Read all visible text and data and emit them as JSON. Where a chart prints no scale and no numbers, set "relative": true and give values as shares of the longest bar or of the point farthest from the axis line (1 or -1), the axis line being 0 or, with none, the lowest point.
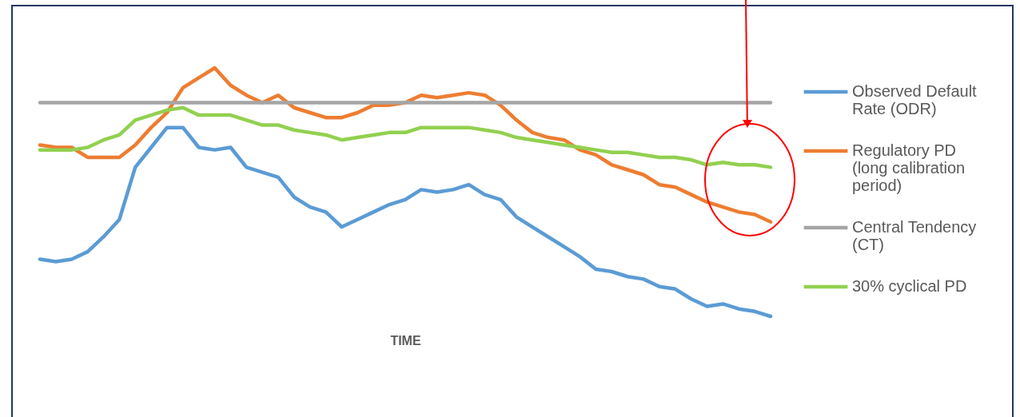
{
  "chart_data": {
    "type": "line",
    "relative": true,
    "xlabel": "TIME",
    "legend": "right",
    "categories": [
      null,
      null,
      null,
      null,
      null,
      null,
      null,
      null,
      null,
      null,
      null,
      null,
      null,
      null,
      null,
      null,
      null,
      null,
      null,
      null,
      null,
      null,
      null,
      null,
      null,
      null,
      null,
      null,
      null,
      null,
      null,
      null,
      null,
      null,
      null,
      null,
      null,
      null,
      null,
      null,
      null,
      null,
      null,
      null,
      null,
      null,
      null
    ],
    "series": [
      {
        "name": "Observed Default Rate (ODR)",
        "color": "#5b9bd5",
        "values": [
          0.23,
          0.22,
          0.23,
          0.26,
          0.32,
          0.39,
          0.6,
          0.68,
          0.76,
          0.76,
          0.68,
          0.67,
          0.68,
          0.6,
          0.58,
          0.56,
          0.48,
          0.44,
          0.42,
          0.36,
          0.39,
          0.42,
          0.45,
          0.47,
          0.51,
          0.5,
          0.51,
          0.53,
          0.49,
          0.47,
          0.4,
          0.36,
          0.32,
          0.28,
          0.24,
          0.19,
          0.18,
          0.16,
          0.15,
          0.12,
          0.11,
          0.07,
          0.04,
          0.05,
          0.03,
          0.02,
          0
        ]
      },
      {
        "name": "Regulatory PD (long calibration period)",
        "color": "#ed7d31",
        "values": [
          0.69,
          0.68,
          0.68,
          0.64,
          0.64,
          0.64,
          0.69,
          0.76,
          0.82,
          0.92,
          0.96,
          1,
          0.93,
          0.89,
          0.86,
          0.89,
          0.84,
          0.82,
          0.8,
          0.8,
          0.82,
          0.85,
          0.85,
          0.86,
          0.89,
          0.88,
          0.89,
          0.9,
          0.89,
          0.85,
          0.79,
          0.74,
          0.72,
          0.71,
          0.67,
          0.65,
          0.61,
          0.59,
          0.57,
          0.53,
          0.52,
          0.49,
          0.46,
          0.44,
          0.42,
          0.41,
          0.38
        ]
      },
      {
        "name": "Central Tendency (CT)",
        "color": "#a5a5a5",
        "values": [
          0.86,
          0.86,
          0.86,
          0.86,
          0.86,
          0.86,
          0.86,
          0.86,
          0.86,
          0.86,
          0.86,
          0.86,
          0.86,
          0.86,
          0.86,
          0.86,
          0.86,
          0.86,
          0.86,
          0.86,
          0.86,
          0.86,
          0.86,
          0.86,
          0.86,
          0.86,
          0.86,
          0.86,
          0.86,
          0.86,
          0.86,
          0.86,
          0.86,
          0.86,
          0.86,
          0.86,
          0.86,
          0.86,
          0.86,
          0.86,
          0.86,
          0.86,
          0.86,
          0.86,
          0.86,
          0.86,
          0.86
        ]
      },
      {
        "name": "30% cyclical PD",
        "color": "#92d050",
        "values": [
          0.67,
          0.67,
          0.67,
          0.68,
          0.71,
          0.73,
          0.79,
          0.81,
          0.83,
          0.84,
          0.81,
          0.81,
          0.81,
          0.79,
          0.77,
          0.77,
          0.75,
          0.74,
          0.73,
          0.71,
          0.72,
          0.73,
          0.74,
          0.74,
          0.76,
          0.76,
          0.76,
          0.76,
          0.75,
          0.74,
          0.72,
          0.71,
          0.7,
          0.69,
          0.68,
          0.67,
          0.66,
          0.66,
          0.65,
          0.64,
          0.64,
          0.63,
          0.61,
          0.62,
          0.61,
          0.61,
          0.6
        ]
      }
    ]
  }
}
